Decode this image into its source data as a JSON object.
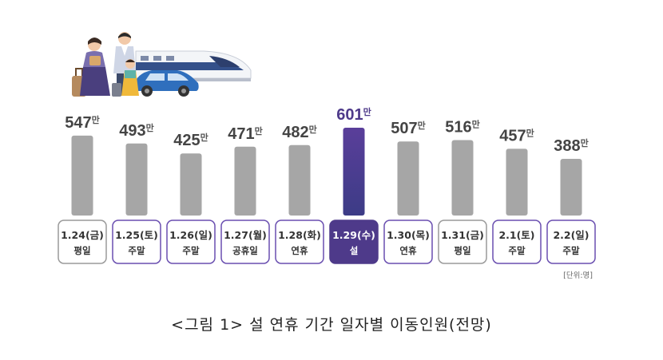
{
  "colors": {
    "bar": "#a6a6a6",
    "highlight_top": "#5a3e9a",
    "highlight_bottom": "#3c3c86",
    "box_border_gray": "#9a9a9a",
    "box_border_purple": "#6a4fb0",
    "highlight_box": "#4e3a8a"
  },
  "illustration": "family-travel-illustration",
  "chart_data": {
    "type": "bar",
    "title": "",
    "value_unit": "만",
    "unit_note": "[단위:명]",
    "categories": [
      "1.24(금)",
      "1.25(토)",
      "1.26(일)",
      "1.27(월)",
      "1.28(화)",
      "1.29(수)",
      "1.30(목)",
      "1.31(금)",
      "2.1(토)",
      "2.2(일)"
    ],
    "day_types": [
      "평일",
      "주말",
      "주말",
      "공휴일",
      "연휴",
      "설",
      "연휴",
      "평일",
      "주말",
      "주말"
    ],
    "values": [
      547,
      493,
      425,
      471,
      482,
      601,
      507,
      516,
      457,
      388
    ],
    "highlight_index": 5,
    "box_styles": [
      "gray",
      "purple",
      "purple",
      "purple",
      "purple",
      "filled",
      "purple",
      "gray",
      "purple",
      "purple"
    ],
    "ylim": [
      0,
      601
    ]
  },
  "caption": "<그림 1> 설 연휴 기간 일자별 이동인원(전망)"
}
